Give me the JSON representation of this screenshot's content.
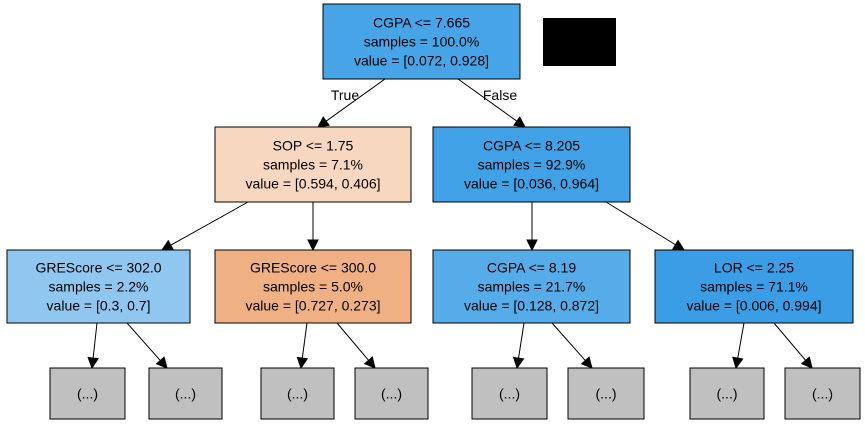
{
  "nodes": [
    {
      "id": "n0",
      "lines": [
        "CGPA <= 7.665",
        "samples = 100.0%",
        "value = [0.072, 0.928]"
      ],
      "fill": "#47a4e7"
    },
    {
      "id": "n1",
      "lines": [
        "SOP <= 1.75",
        "samples = 7.1%",
        "value = [0.594, 0.406]"
      ],
      "fill": "#f7d7c0"
    },
    {
      "id": "n2",
      "lines": [
        "CGPA <= 8.205",
        "samples = 92.9%",
        "value = [0.036, 0.964]"
      ],
      "fill": "#41a1e6"
    },
    {
      "id": "n3",
      "lines": [
        "GREScore <= 302.0",
        "samples = 2.2%",
        "value = [0.3, 0.7]"
      ],
      "fill": "#8fc7f0"
    },
    {
      "id": "n4",
      "lines": [
        "GREScore <= 300.0",
        "samples = 5.0%",
        "value = [0.727, 0.273]"
      ],
      "fill": "#efb083"
    },
    {
      "id": "n5",
      "lines": [
        "CGPA <= 8.19",
        "samples = 21.7%",
        "value = [0.128, 0.872]"
      ],
      "fill": "#56abe9"
    },
    {
      "id": "n6",
      "lines": [
        "LOR <= 2.25",
        "samples = 71.1%",
        "value = [0.006, 0.994]"
      ],
      "fill": "#3a9de5"
    },
    {
      "id": "l1",
      "lines": [
        "(...)"
      ],
      "fill": "#c0c0c0"
    },
    {
      "id": "l2",
      "lines": [
        "(...)"
      ],
      "fill": "#c0c0c0"
    },
    {
      "id": "l3",
      "lines": [
        "(...)"
      ],
      "fill": "#c0c0c0"
    },
    {
      "id": "l4",
      "lines": [
        "(...)"
      ],
      "fill": "#c0c0c0"
    },
    {
      "id": "l5",
      "lines": [
        "(...)"
      ],
      "fill": "#c0c0c0"
    },
    {
      "id": "l6",
      "lines": [
        "(...)"
      ],
      "fill": "#c0c0c0"
    },
    {
      "id": "l7",
      "lines": [
        "(...)"
      ],
      "fill": "#c0c0c0"
    },
    {
      "id": "l8",
      "lines": [
        "(...)"
      ],
      "fill": "#c0c0c0"
    }
  ],
  "edges": [
    {
      "from": "n0",
      "to": "n1",
      "label": "True"
    },
    {
      "from": "n0",
      "to": "n2",
      "label": "False"
    },
    {
      "from": "n1",
      "to": "n3",
      "label": ""
    },
    {
      "from": "n1",
      "to": "n4",
      "label": ""
    },
    {
      "from": "n2",
      "to": "n5",
      "label": ""
    },
    {
      "from": "n2",
      "to": "n6",
      "label": ""
    },
    {
      "from": "n3",
      "to": "l1",
      "label": ""
    },
    {
      "from": "n3",
      "to": "l2",
      "label": ""
    },
    {
      "from": "n4",
      "to": "l3",
      "label": ""
    },
    {
      "from": "n4",
      "to": "l4",
      "label": ""
    },
    {
      "from": "n5",
      "to": "l5",
      "label": ""
    },
    {
      "from": "n5",
      "to": "l6",
      "label": ""
    },
    {
      "from": "n6",
      "to": "l7",
      "label": ""
    },
    {
      "from": "n6",
      "to": "l8",
      "label": ""
    }
  ],
  "redaction_color": "#000000"
}
